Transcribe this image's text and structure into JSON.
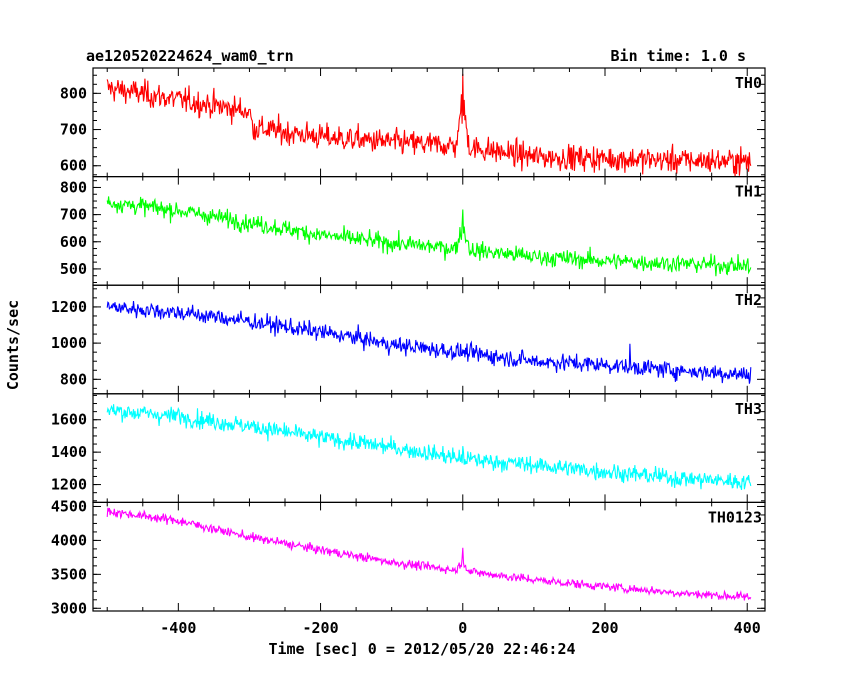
{
  "header": {
    "title": "ae120520224624_wam0_trn",
    "bin_time": "Bin time: 1.0 s"
  },
  "chart_data": {
    "type": "line",
    "xlabel": "Time [sec] 0 = 2012/05/20 22:46:24",
    "ylabel": "Counts/sec",
    "xlim": [
      -520,
      425
    ],
    "x_ticks": [
      -400,
      -200,
      0,
      200,
      400
    ],
    "x_step": 1,
    "grid": false,
    "panels": [
      {
        "name": "TH0",
        "color": "#ff0000",
        "ylim": [
          570,
          870
        ],
        "y_ticks": [
          600,
          700,
          800
        ],
        "x": [
          -500,
          -300,
          -295,
          -200,
          -100,
          -10,
          0,
          10,
          100,
          200,
          300,
          405
        ],
        "y": [
          815,
          750,
          705,
          680,
          665,
          655,
          760,
          650,
          625,
          620,
          615,
          612
        ],
        "noise": 30,
        "spikes": [
          [
            0,
            80
          ],
          [
            -2,
            50
          ],
          [
            2,
            40
          ]
        ]
      },
      {
        "name": "TH1",
        "color": "#00ff00",
        "ylim": [
          440,
          840
        ],
        "y_ticks": [
          500,
          600,
          700,
          800
        ],
        "x": [
          -500,
          -400,
          -300,
          -200,
          -100,
          -10,
          0,
          10,
          100,
          200,
          300,
          405
        ],
        "y": [
          745,
          715,
          670,
          625,
          595,
          575,
          660,
          570,
          545,
          530,
          520,
          510
        ],
        "noise": 27,
        "spikes": [
          [
            0,
            55
          ]
        ]
      },
      {
        "name": "TH2",
        "color": "#0000ff",
        "ylim": [
          720,
          1320
        ],
        "y_ticks": [
          800,
          1000,
          1200
        ],
        "x": [
          -500,
          -400,
          -300,
          -200,
          -150,
          -100,
          0,
          100,
          200,
          300,
          405
        ],
        "y": [
          1200,
          1170,
          1120,
          1060,
          1030,
          990,
          950,
          900,
          880,
          850,
          825
        ],
        "noise": 40,
        "spikes": [
          [
            235,
            60
          ]
        ]
      },
      {
        "name": "TH3",
        "color": "#00ffff",
        "ylim": [
          1090,
          1760
        ],
        "y_ticks": [
          1200,
          1400,
          1600
        ],
        "x": [
          -500,
          -400,
          -300,
          -200,
          -100,
          0,
          100,
          200,
          300,
          405
        ],
        "y": [
          1660,
          1620,
          1560,
          1490,
          1430,
          1360,
          1320,
          1280,
          1240,
          1215
        ],
        "noise": 45,
        "spikes": [
          [
            -400,
            60
          ],
          [
            0,
            50
          ]
        ]
      },
      {
        "name": "TH0123",
        "color": "#ff00ff",
        "ylim": [
          2960,
          4560
        ],
        "y_ticks": [
          3000,
          3500,
          4000,
          4500
        ],
        "x": [
          -500,
          -400,
          -300,
          -200,
          -100,
          -10,
          0,
          10,
          100,
          200,
          300,
          405
        ],
        "y": [
          4430,
          4290,
          4050,
          3860,
          3680,
          3560,
          3700,
          3540,
          3420,
          3320,
          3230,
          3160
        ],
        "noise": 55,
        "spikes": [
          [
            0,
            150
          ]
        ]
      }
    ]
  }
}
